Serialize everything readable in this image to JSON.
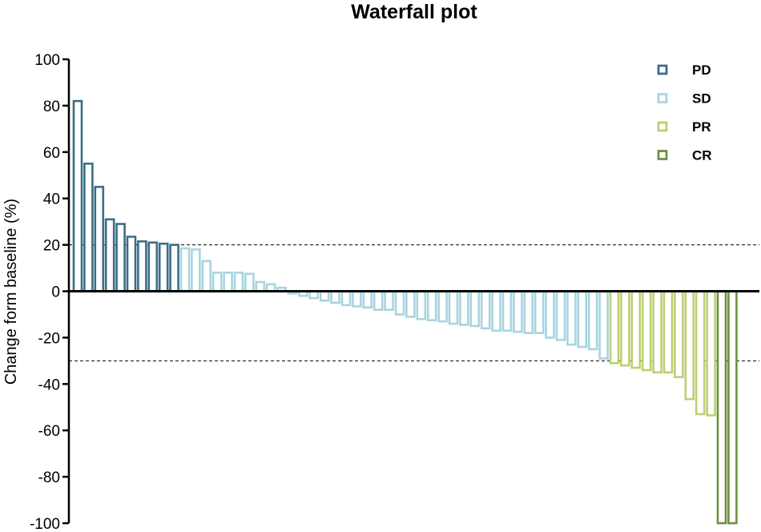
{
  "chart_data": {
    "type": "bar",
    "title": "Waterfall plot",
    "xlabel": "",
    "ylabel": "Change form baseline (%)",
    "ylim": [
      -100,
      100
    ],
    "yticks": [
      100,
      80,
      60,
      40,
      20,
      0,
      -20,
      -40,
      -60,
      -80,
      -100
    ],
    "ytick_labels": [
      "100",
      "80",
      "60",
      "40",
      "20",
      "0",
      "-20",
      "-40",
      "-60",
      "-80",
      "-100"
    ],
    "reference_lines": [
      20,
      -30
    ],
    "legend_position": "top-right",
    "series": [
      {
        "name": "PD",
        "color": "#3a6e87",
        "slot_start": 0,
        "values": [
          82,
          55,
          45,
          31,
          29,
          23.5,
          21.5,
          21,
          20.5,
          20
        ]
      },
      {
        "name": "SD",
        "color": "#a8d4e0",
        "slot_start": 10,
        "values": [
          18.5,
          18,
          13,
          8,
          8,
          8,
          7.5,
          4,
          3,
          1.5,
          -1,
          -2,
          -3,
          -4,
          -5,
          -6,
          -6.5,
          -7,
          -8,
          -8,
          -10,
          -11,
          -12,
          -12.5,
          -13,
          -14,
          -14.5,
          -15,
          -16,
          -17,
          -17,
          -17.5,
          -18,
          -18,
          -20,
          -21,
          -23,
          -24,
          -25,
          -29
        ]
      },
      {
        "name": "PR",
        "color": "#bccf74",
        "slot_start": 50,
        "values": [
          -31,
          -32,
          -33,
          -34,
          -35,
          -35,
          -37,
          -46.5,
          -53,
          -53.5
        ]
      },
      {
        "name": "CR",
        "color": "#6f8f3f",
        "slot_start": 60,
        "values": [
          -100,
          -100
        ]
      }
    ]
  }
}
